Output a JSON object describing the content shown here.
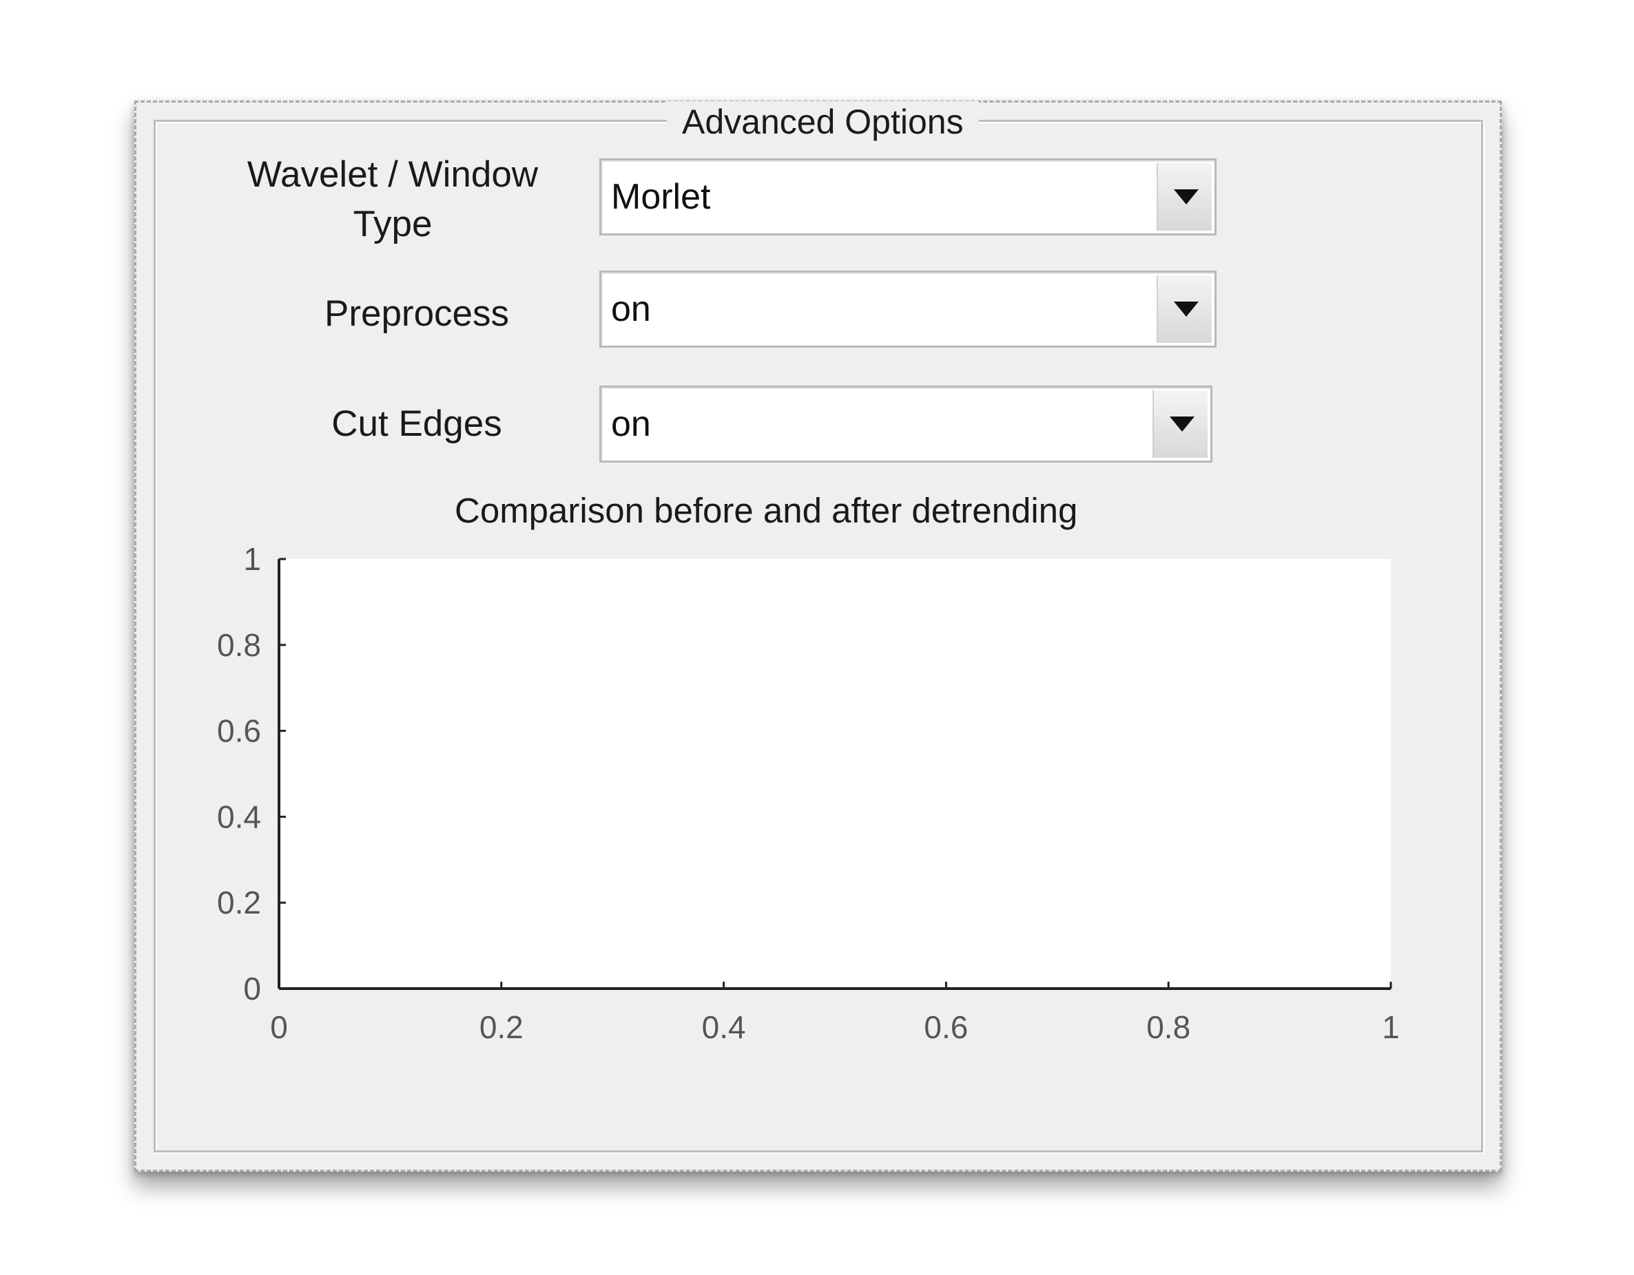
{
  "panel": {
    "title": "Advanced Options"
  },
  "fields": {
    "wavelet": {
      "label_line1": "Wavelet / Window",
      "label_line2": "Type",
      "value": "Morlet"
    },
    "preprocess": {
      "label": "Preprocess",
      "value": "on"
    },
    "cut_edges": {
      "label": "Cut Edges",
      "value": "on"
    }
  },
  "icons": {
    "dropdown_arrow": "chevron-down-icon"
  },
  "chart_data": {
    "type": "line",
    "title": "Comparison before and after detrending",
    "xlabel": "",
    "ylabel": "",
    "xlim": [
      0,
      1
    ],
    "ylim": [
      0,
      1
    ],
    "x_ticks": [
      "0",
      "0.2",
      "0.4",
      "0.6",
      "0.8",
      "1"
    ],
    "y_ticks": [
      "0",
      "0.2",
      "0.4",
      "0.6",
      "0.8",
      "1"
    ],
    "series": [],
    "grid": false
  }
}
